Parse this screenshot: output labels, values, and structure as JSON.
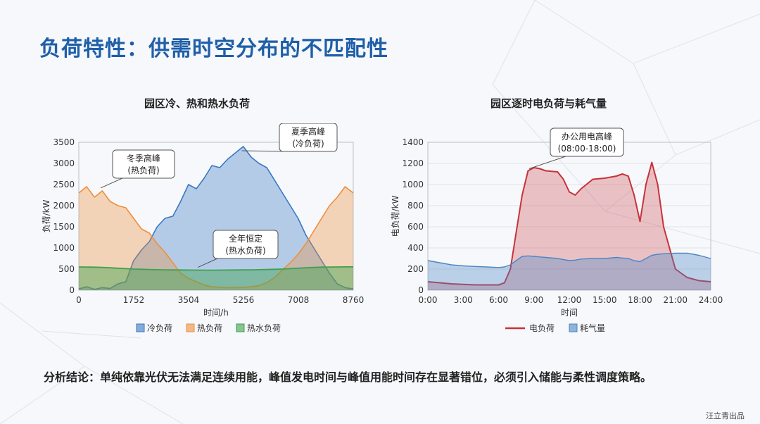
{
  "title": "负荷特性：供需时空分布的不匹配性",
  "conclusion": "分析结论：单纯依靠光伏无法满足连续用能，峰值发电时间与峰值用能时间存在显著错位，必须引入储能与柔性调度策略。",
  "credit": "汪立青出品",
  "colors": {
    "title": "#1f5fa8",
    "cooling": "#3a78c2",
    "heating": "#ef8f3a",
    "hotwater": "#3fa14f",
    "electric": "#c8323a",
    "gas": "#4b86c5"
  },
  "chart_data": [
    {
      "type": "area",
      "title": "园区冷、热和热水负荷",
      "xlabel": "时间/h",
      "ylabel": "负荷/kW",
      "xlim": [
        0,
        8760
      ],
      "ylim": [
        0,
        3500
      ],
      "x_ticks": [
        "0",
        "1752",
        "3504",
        "5256",
        "7008",
        "8760"
      ],
      "y_ticks": [
        "0",
        "500",
        "1000",
        "1500",
        "2000",
        "2500",
        "3000",
        "3500"
      ],
      "legend": [
        "冷负荷",
        "热负荷",
        "热水负荷"
      ],
      "legend_position": "bottom",
      "grid": false,
      "annotations": [
        {
          "text": [
            "冬季高峰",
            "(热负荷)"
          ],
          "target": [
            700,
            2420
          ]
        },
        {
          "text": [
            "夏季高峰",
            "(冷负荷)"
          ],
          "target": [
            5200,
            3300
          ]
        },
        {
          "text": [
            "全年恒定",
            "(热水负荷)"
          ],
          "target": [
            3800,
            540
          ]
        }
      ],
      "x": [
        0,
        250,
        500,
        750,
        1000,
        1250,
        1500,
        1750,
        2000,
        2250,
        2500,
        2750,
        3000,
        3250,
        3500,
        3750,
        4000,
        4250,
        4500,
        4750,
        5000,
        5250,
        5500,
        5750,
        6000,
        6250,
        6500,
        6750,
        7000,
        7250,
        7500,
        7750,
        8000,
        8250,
        8500,
        8760
      ],
      "series": [
        {
          "name": "冷负荷",
          "values": [
            30,
            80,
            20,
            60,
            40,
            150,
            200,
            700,
            950,
            1150,
            1500,
            1700,
            1750,
            2100,
            2500,
            2400,
            2650,
            2950,
            2900,
            3100,
            3250,
            3400,
            3150,
            3000,
            2900,
            2600,
            2300,
            2000,
            1700,
            1300,
            1000,
            700,
            400,
            150,
            60,
            30
          ]
        },
        {
          "name": "热负荷",
          "values": [
            2300,
            2450,
            2200,
            2350,
            2100,
            2000,
            1950,
            1700,
            1450,
            1350,
            1100,
            900,
            650,
            400,
            280,
            200,
            120,
            80,
            70,
            60,
            60,
            70,
            80,
            110,
            180,
            300,
            480,
            650,
            850,
            1100,
            1400,
            1700,
            2000,
            2200,
            2450,
            2300
          ]
        },
        {
          "name": "热水负荷",
          "values": [
            550,
            548,
            545,
            540,
            530,
            520,
            510,
            500,
            495,
            490,
            485,
            482,
            480,
            478,
            476,
            475,
            474,
            474,
            475,
            476,
            478,
            480,
            482,
            485,
            490,
            495,
            500,
            510,
            520,
            530,
            538,
            545,
            548,
            550,
            551,
            552
          ]
        }
      ]
    },
    {
      "type": "area",
      "title": "园区逐时电负荷与耗气量",
      "xlabel": "时间",
      "ylabel": "电负荷/kW",
      "xlim": [
        0,
        24
      ],
      "ylim": [
        0,
        1400
      ],
      "x_ticks": [
        "0:00",
        "3:00",
        "6:00",
        "9:00",
        "12:00",
        "15:00",
        "18:00",
        "21:00",
        "24:00"
      ],
      "y_ticks": [
        "0",
        "200",
        "400",
        "600",
        "800",
        "1000",
        "1200",
        "1400"
      ],
      "legend": [
        "电负荷",
        "耗气量"
      ],
      "legend_position": "bottom",
      "grid": true,
      "annotations": [
        {
          "text": [
            "办公用电高峰",
            "(08:00-18:00)"
          ],
          "target": [
            8.6,
            1150
          ]
        }
      ],
      "x": [
        0,
        1,
        2,
        3,
        4,
        5,
        6,
        6.5,
        7,
        7.5,
        8,
        8.5,
        9,
        9.5,
        10,
        11,
        11.5,
        12,
        12.5,
        13,
        14,
        15,
        16,
        16.5,
        17,
        17.5,
        18,
        18.5,
        19,
        19.5,
        20,
        21,
        22,
        23,
        24
      ],
      "series": [
        {
          "name": "电负荷",
          "values": [
            80,
            70,
            60,
            55,
            50,
            50,
            50,
            70,
            200,
            550,
            900,
            1130,
            1160,
            1150,
            1130,
            1120,
            1050,
            930,
            900,
            960,
            1050,
            1060,
            1080,
            1100,
            1080,
            900,
            650,
            1000,
            1210,
            1000,
            600,
            200,
            120,
            90,
            80
          ]
        },
        {
          "name": "耗气量",
          "values": [
            280,
            260,
            240,
            230,
            225,
            220,
            215,
            220,
            240,
            280,
            320,
            325,
            320,
            315,
            310,
            300,
            290,
            280,
            285,
            295,
            300,
            300,
            310,
            305,
            300,
            280,
            270,
            300,
            330,
            340,
            345,
            350,
            350,
            330,
            300
          ]
        }
      ]
    }
  ]
}
